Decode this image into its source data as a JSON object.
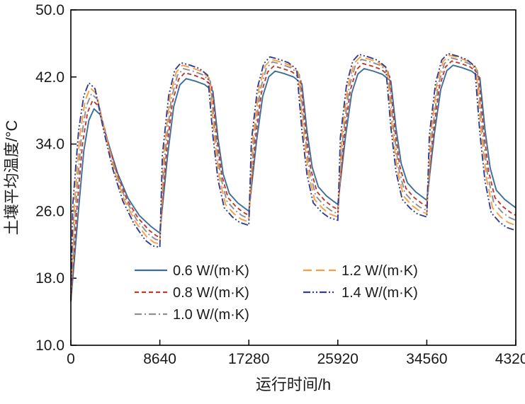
{
  "figure": {
    "xlabel": "运行时间/h",
    "ylabel": "土壤平均温度/°C",
    "x_tick_labels": [
      "0",
      "8640",
      "17280",
      "25920",
      "34560",
      "43200"
    ],
    "y_tick_labels": [
      "10.0",
      "18.0",
      "26.0",
      "34.0",
      "42.0",
      "50.0"
    ]
  },
  "chart_data": {
    "type": "line",
    "title": "",
    "xlabel": "运行时间/h",
    "ylabel": "土壤平均温度/°C",
    "xlim": [
      0,
      43200
    ],
    "ylim": [
      10,
      50
    ],
    "x_ticks": [
      0,
      8640,
      17280,
      25920,
      34560,
      43200
    ],
    "y_ticks": [
      10.0,
      18.0,
      26.0,
      34.0,
      42.0,
      50.0
    ],
    "grid": false,
    "legend_position": "lower center inside",
    "cycle_hours": 8640,
    "start_temp": 15.2,
    "curve_template": {
      "first_cycle": [
        [
          0,
          0,
          1,
          0,
          "r"
        ],
        [
          450,
          0.45,
          0.55,
          0,
          "r"
        ],
        [
          1000,
          0.78,
          0.22,
          0,
          "r"
        ],
        [
          1500,
          0.94,
          0.06,
          0,
          "r"
        ],
        [
          2000,
          1,
          0,
          0,
          "r"
        ],
        [
          2600,
          1,
          0,
          -0.7,
          "f"
        ],
        [
          3400,
          0.72,
          0.28,
          0,
          "f"
        ],
        [
          4300,
          0.48,
          0.52,
          0,
          "f"
        ],
        [
          5300,
          0.28,
          0.72,
          0,
          "f"
        ],
        [
          6400,
          0.14,
          0.86,
          0,
          "f"
        ],
        [
          7500,
          0,
          1,
          0.8,
          "f"
        ],
        [
          8200,
          0,
          1,
          0.15,
          "f"
        ],
        [
          8640,
          0,
          1,
          0,
          "f"
        ]
      ],
      "later_cycle": [
        [
          0,
          0,
          1,
          0,
          "r"
        ],
        [
          500,
          0.5,
          0.5,
          0,
          "r"
        ],
        [
          1100,
          0.82,
          0.18,
          0,
          "r"
        ],
        [
          1700,
          0.96,
          0.04,
          0,
          "r"
        ],
        [
          2300,
          1,
          0,
          0,
          "r"
        ],
        [
          3200,
          1,
          0,
          -0.3,
          "f"
        ],
        [
          4100,
          1,
          0,
          -0.7,
          "f"
        ],
        [
          4900,
          1,
          0,
          -1.5,
          "f"
        ],
        [
          5400,
          0.55,
          0.45,
          0,
          "f"
        ],
        [
          5900,
          0.28,
          0.72,
          0,
          "f"
        ],
        [
          6500,
          0,
          1,
          2.1,
          "f"
        ],
        [
          7300,
          0,
          1,
          1.0,
          "f"
        ],
        [
          8000,
          0,
          1,
          0.35,
          "f"
        ],
        [
          8640,
          0,
          1,
          0,
          "f"
        ]
      ]
    },
    "series": [
      {
        "id": "k06",
        "label": "0.6 W/(m·K)",
        "color": "#3c6e9c",
        "dash": "",
        "x_shift": 250,
        "annual_peaks": [
          38.2,
          41.8,
          42.7,
          43.0,
          43.4
        ],
        "annual_mins": [
          23.4,
          26.0,
          26.8,
          27.3,
          26.4
        ]
      },
      {
        "id": "k08",
        "label": "0.8 W/(m·K)",
        "color": "#c0392b",
        "dash": "6 4",
        "x_shift": 120,
        "annual_peaks": [
          39.2,
          42.5,
          43.3,
          43.6,
          43.9
        ],
        "annual_mins": [
          22.9,
          25.5,
          26.2,
          26.6,
          25.5
        ]
      },
      {
        "id": "k10",
        "label": "1.0 W/(m·K)",
        "color": "#8f8f8f",
        "dash": "10 4 2 4",
        "x_shift": 0,
        "annual_peaks": [
          40.0,
          43.0,
          43.8,
          44.1,
          44.3
        ],
        "annual_mins": [
          22.5,
          25.1,
          25.7,
          26.1,
          24.9
        ]
      },
      {
        "id": "k12",
        "label": "1.2 W/(m·K)",
        "color": "#f59e45",
        "dash": "12 6",
        "x_shift": -120,
        "annual_peaks": [
          40.7,
          43.4,
          44.1,
          44.4,
          44.6
        ],
        "annual_mins": [
          22.1,
          24.7,
          25.3,
          25.7,
          24.3
        ]
      },
      {
        "id": "k14",
        "label": "1.4 W/(m·K)",
        "color": "#333d91",
        "dash": "10 3 2 3 2 3",
        "x_shift": -250,
        "annual_peaks": [
          41.3,
          43.7,
          44.4,
          44.7,
          44.8
        ],
        "annual_mins": [
          21.7,
          24.3,
          24.9,
          25.3,
          23.7
        ]
      }
    ]
  }
}
